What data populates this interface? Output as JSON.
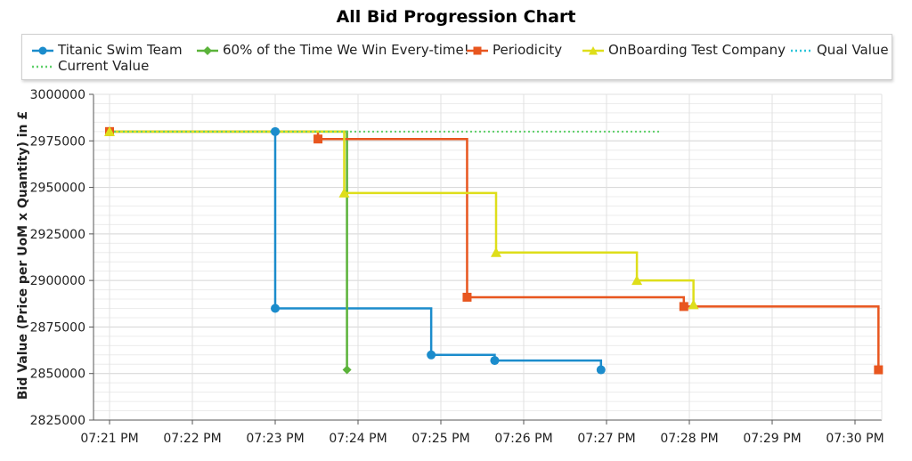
{
  "chart_data": {
    "type": "line",
    "title": "All Bid Progression Chart",
    "xlabel": "",
    "ylabel": "Bid Value (Price per UoM x Quantity) in £",
    "ylim": [
      2825000,
      3000000
    ],
    "xlim_minutes": [
      0,
      9.38
    ],
    "yticks": [
      2825000,
      2850000,
      2875000,
      2900000,
      2925000,
      2950000,
      2975000,
      3000000
    ],
    "xticks": [
      "07:21 PM",
      "07:22 PM",
      "07:23 PM",
      "07:24 PM",
      "07:25 PM",
      "07:26 PM",
      "07:27 PM",
      "07:28 PM",
      "07:29 PM",
      "07:30 PM"
    ],
    "grid": true,
    "legend_position": "top",
    "series": [
      {
        "name": "Titanic Swim Team",
        "color": "#1b8ccc",
        "marker": "circle",
        "step": true,
        "points": [
          [
            "07:23:00 PM",
            2980000
          ],
          [
            "07:23:00 PM",
            2885000
          ],
          [
            "07:24:53 PM",
            2860000
          ],
          [
            "07:25:39 PM",
            2857000
          ],
          [
            "07:26:56 PM",
            2852000
          ]
        ]
      },
      {
        "name": "60% of the Time We Win Every-time!",
        "color": "#5bb33a",
        "marker": "diamond",
        "step": true,
        "points": [
          [
            "07:21:00 PM",
            2980000
          ],
          [
            "07:23:52 PM",
            2852000
          ]
        ]
      },
      {
        "name": "Periodicity",
        "color": "#e8561f",
        "marker": "square",
        "step": true,
        "points": [
          [
            "07:21:00 PM",
            2980000
          ],
          [
            "07:23:31 PM",
            2976000
          ],
          [
            "07:25:19 PM",
            2891000
          ],
          [
            "07:27:56 PM",
            2886000
          ],
          [
            "07:30:17 PM",
            2852000
          ]
        ]
      },
      {
        "name": "OnBoarding Test Company",
        "color": "#dede1a",
        "marker": "triangle",
        "step": true,
        "points": [
          [
            "07:21:00 PM",
            2980000
          ],
          [
            "07:23:50 PM",
            2947000
          ],
          [
            "07:25:40 PM",
            2915000
          ],
          [
            "07:27:22 PM",
            2900000
          ],
          [
            "07:28:03 PM",
            2887000
          ]
        ]
      },
      {
        "name": "Qual Value",
        "color": "#2bc4d9",
        "style": "dotted",
        "points": []
      },
      {
        "name": "Current Value",
        "color": "#5ed06a",
        "style": "dotted",
        "points": [
          [
            "07:21:00 PM",
            2980000
          ],
          [
            "07:27:40 PM",
            2980000
          ]
        ]
      }
    ]
  }
}
